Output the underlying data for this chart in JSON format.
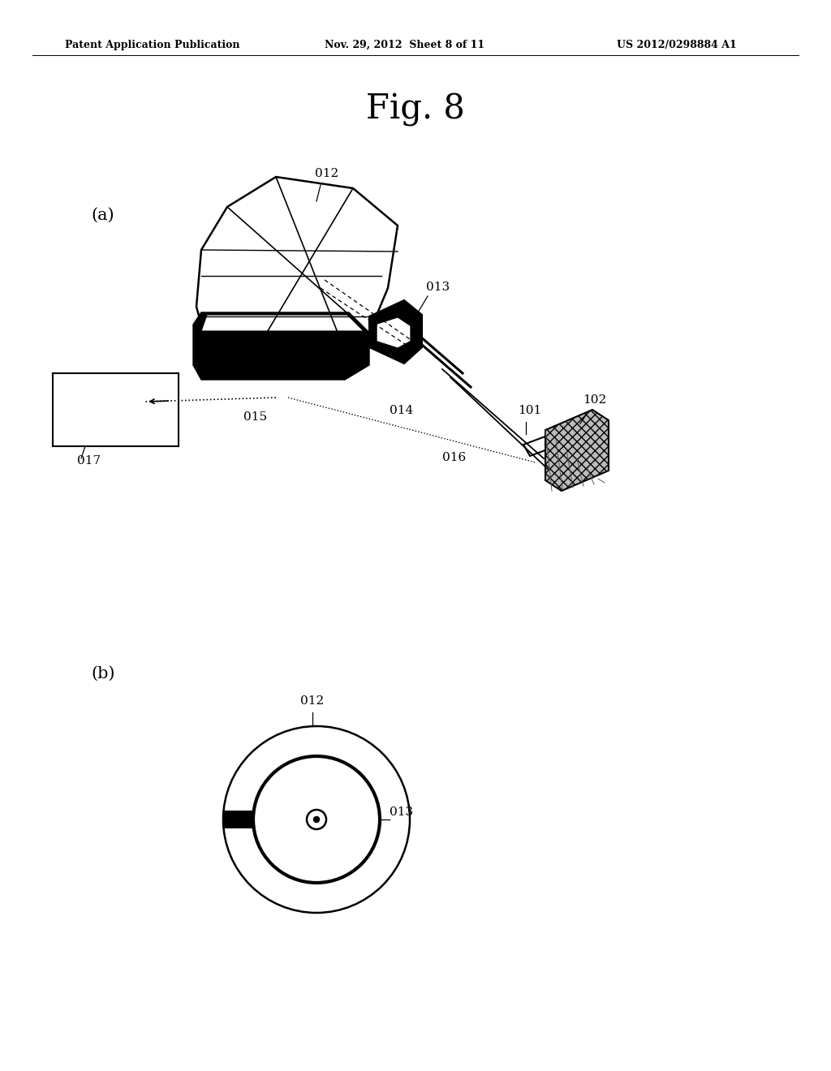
{
  "title": "Fig. 8",
  "header_left": "Patent Application Publication",
  "header_mid": "Nov. 29, 2012  Sheet 8 of 11",
  "header_right": "US 2012/0298884 A1",
  "label_a": "(a)",
  "label_b": "(b)",
  "label_012a": "012",
  "label_013a": "013",
  "label_014": "014",
  "label_015": "015",
  "label_016": "016",
  "label_017": "017",
  "label_101": "101",
  "label_102": "102",
  "label_012b": "012",
  "label_013b": "013",
  "bg_color": "#ffffff",
  "line_color": "#000000"
}
